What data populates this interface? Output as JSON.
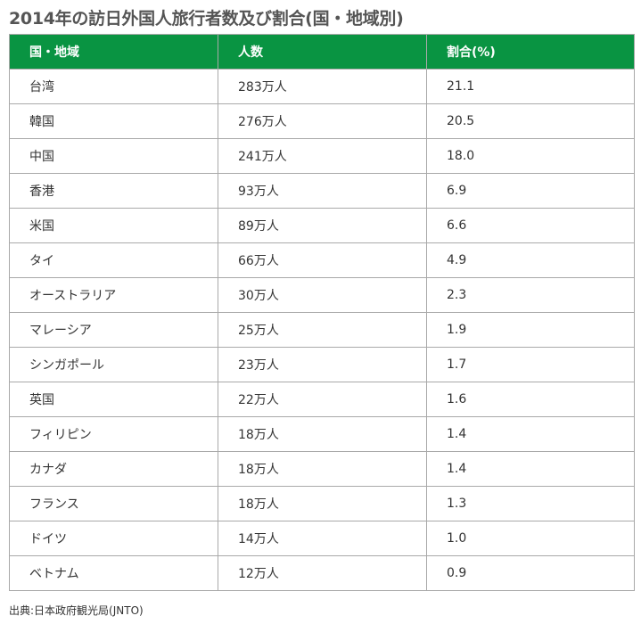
{
  "title": "2014年の訪日外国人旅行者数及び割合(国・地域別)",
  "table": {
    "headers": [
      "国・地域",
      "人数",
      "割合(%)"
    ],
    "rows": [
      [
        "台湾",
        "283万人",
        "21.1"
      ],
      [
        "韓国",
        "276万人",
        "20.5"
      ],
      [
        "中国",
        "241万人",
        "18.0"
      ],
      [
        "香港",
        "93万人",
        "6.9"
      ],
      [
        "米国",
        "89万人",
        "6.6"
      ],
      [
        "タイ",
        "66万人",
        "4.9"
      ],
      [
        "オーストラリア",
        "30万人",
        "2.3"
      ],
      [
        "マレーシア",
        "25万人",
        "1.9"
      ],
      [
        "シンガポール",
        "23万人",
        "1.7"
      ],
      [
        "英国",
        "22万人",
        "1.6"
      ],
      [
        "フィリピン",
        "18万人",
        "1.4"
      ],
      [
        "カナダ",
        "18万人",
        "1.4"
      ],
      [
        "フランス",
        "18万人",
        "1.3"
      ],
      [
        "ドイツ",
        "14万人",
        "1.0"
      ],
      [
        "ベトナム",
        "12万人",
        "0.9"
      ]
    ]
  },
  "source": "出典:日本政府観光局(JNTO)",
  "colors": {
    "header_bg": "#099442",
    "header_text": "#ffffff",
    "border": "#a9a9a9",
    "title_text": "#555555"
  }
}
